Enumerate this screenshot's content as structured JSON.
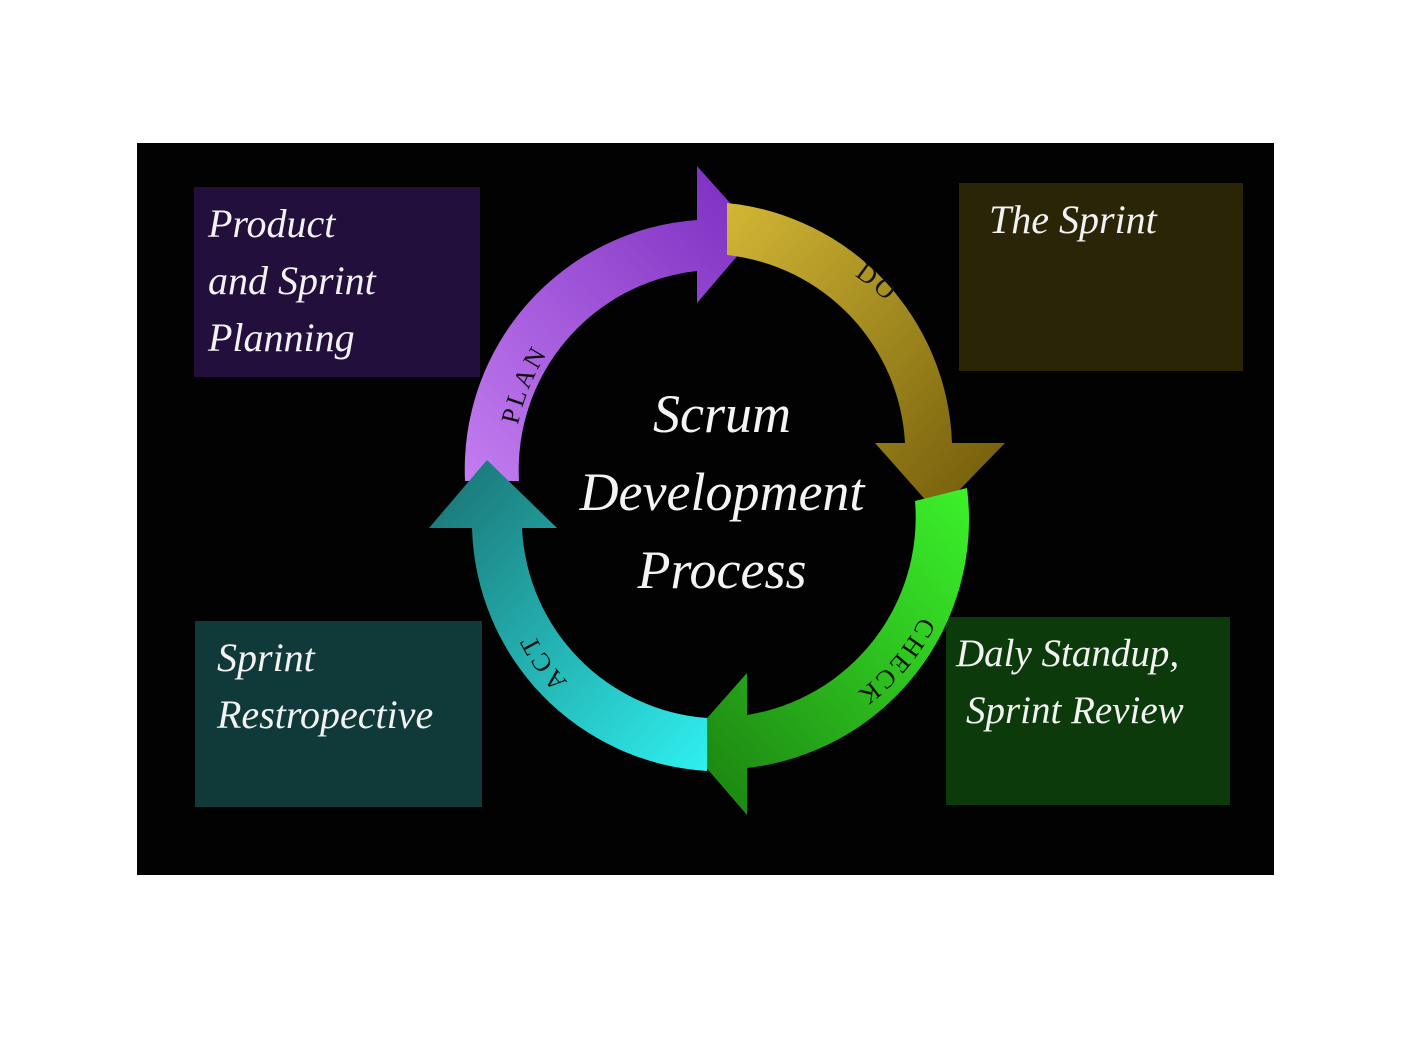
{
  "diagram": {
    "center_title": [
      "Scrum",
      "Development",
      "Process"
    ],
    "cycle": [
      {
        "id": "plan",
        "label": "PLAN",
        "color": "#9b47d6"
      },
      {
        "id": "do",
        "label": "DO",
        "color": "#a88d12"
      },
      {
        "id": "check",
        "label": "CHECK",
        "color": "#2fbf1c"
      },
      {
        "id": "act",
        "label": "ACT",
        "color": "#1a9a9a"
      }
    ],
    "boxes": {
      "plan": {
        "lines": [
          "Product",
          "and Sprint",
          "Planning"
        ],
        "color": "#230f3c"
      },
      "do": {
        "lines": [
          "The Sprint"
        ],
        "color": "#2b2508"
      },
      "check": {
        "lines": [
          "Daly Standup,",
          "Sprint Review"
        ],
        "color": "#0d3a0b"
      },
      "act": {
        "lines": [
          "Sprint",
          "Restropective"
        ],
        "color": "#10393a"
      }
    },
    "background_color": "#020202"
  }
}
